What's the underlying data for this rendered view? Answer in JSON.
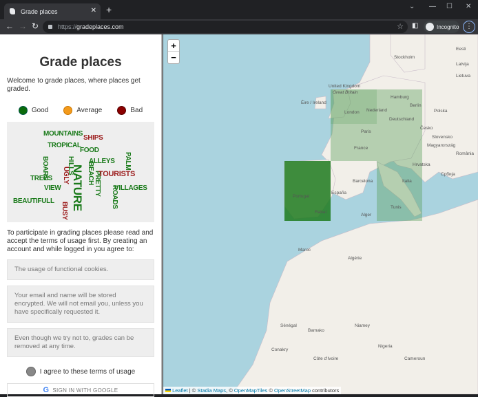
{
  "browser": {
    "tab_title": "Grade places",
    "url_prefix": "https://",
    "url_host": "gradeplaces.com",
    "profile_label": "Incognito"
  },
  "sidebar": {
    "title": "Grade places",
    "welcome": "Welcome to grade places, where places get graded.",
    "legend": [
      {
        "label": "Good",
        "color": "#0b6b0b"
      },
      {
        "label": "Average",
        "color": "#f39a1c"
      },
      {
        "label": "Bad",
        "color": "#8b0000"
      }
    ],
    "word_cloud": [
      {
        "text": "MOUNTAINS",
        "tone": "good"
      },
      {
        "text": "SHIPS",
        "tone": "bad"
      },
      {
        "text": "TROPICAL",
        "tone": "good"
      },
      {
        "text": "FOOD",
        "tone": "good"
      },
      {
        "text": "PALM",
        "tone": "good"
      },
      {
        "text": "BOARS",
        "tone": "good"
      },
      {
        "text": "HILLS",
        "tone": "good"
      },
      {
        "text": "BEACH",
        "tone": "good"
      },
      {
        "text": "ALLEYS",
        "tone": "good"
      },
      {
        "text": "UGLY",
        "tone": "bad"
      },
      {
        "text": "PRETTY",
        "tone": "good"
      },
      {
        "text": "TOURISTS",
        "tone": "bad"
      },
      {
        "text": "TREES",
        "tone": "good"
      },
      {
        "text": "NATURE",
        "tone": "good"
      },
      {
        "text": "VIEW",
        "tone": "good"
      },
      {
        "text": "ROADS",
        "tone": "good"
      },
      {
        "text": "VILLAGES",
        "tone": "good"
      },
      {
        "text": "BEAUTIFULL",
        "tone": "good"
      },
      {
        "text": "BUSY",
        "tone": "bad"
      }
    ],
    "intro": "To participate in grading places please read and accept the terms of usage first. By creating an account and while logged in you agree to:",
    "terms": [
      "The usage of functional cookies.",
      "Your email and name will be stored encrypted. We will not email you, unless you have specifically requested it.",
      "Even though we try not to, grades can be removed at any time."
    ],
    "agree_label": "I agree to these terms of usage",
    "google_button": "SIGN IN WITH GOOGLE"
  },
  "map": {
    "zoom_in": "+",
    "zoom_out": "−",
    "attribution": {
      "leaflet": "Leaflet",
      "sep": " | © ",
      "stadia": "Stadia Maps",
      "c2": ", © ",
      "omt": "OpenMapTiles",
      "c3": " © ",
      "osm": "OpenStreetMap",
      "tail": " contributors"
    },
    "labels": [
      "Stockholm",
      "Eesti",
      "Latvija",
      "Lietuva",
      "United Kingdom",
      "Great Britain",
      "Éire / Ireland",
      "London",
      "Nederland",
      "Hamburg",
      "Berlin",
      "Deutschland",
      "Polska",
      "Paris",
      "France",
      "Česko",
      "Slovensko",
      "Magyarország",
      "România",
      "Hrvatska",
      "Србија",
      "Italia",
      "Barcelona",
      "España",
      "Portugal",
      "Alger",
      "Tunis",
      "Rabat",
      "Maroc",
      "Algérie",
      "Sénégal",
      "Bamako",
      "Niamey",
      "Conakry",
      "Côte d'Ivoire",
      "Nigeria",
      "Cameroun"
    ]
  }
}
